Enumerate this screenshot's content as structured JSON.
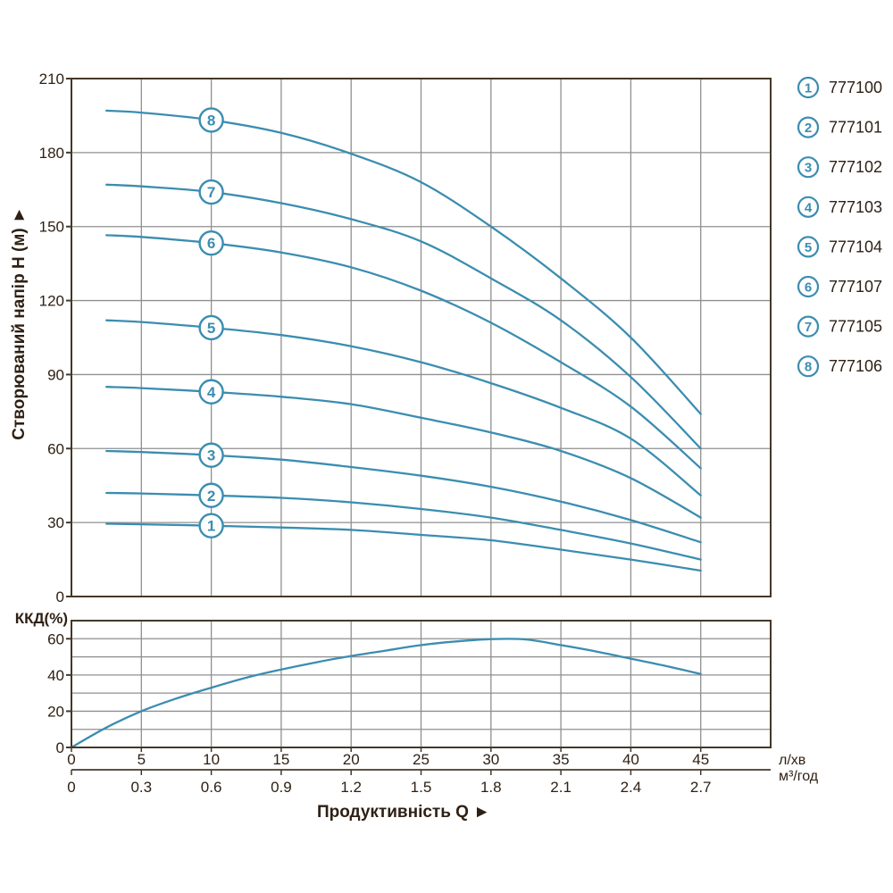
{
  "labels": {
    "y_axis": "Створюваний напір Н (м) ►",
    "x_axis": "Продуктивність  Q ►",
    "efficiency": "ККД(%)",
    "unit_primary": "л/хв",
    "unit_secondary": "м³/год"
  },
  "colors": {
    "curve": "#3b8db0",
    "grid": "#8f8f8f",
    "frame": "#453828",
    "text": "#2e2014"
  },
  "legend": [
    {
      "marker": "1",
      "code": "777100"
    },
    {
      "marker": "2",
      "code": "777101"
    },
    {
      "marker": "3",
      "code": "777102"
    },
    {
      "marker": "4",
      "code": "777103"
    },
    {
      "marker": "5",
      "code": "777104"
    },
    {
      "marker": "6",
      "code": "777107"
    },
    {
      "marker": "7",
      "code": "777105"
    },
    {
      "marker": "8",
      "code": "777106"
    }
  ],
  "chart_data": [
    {
      "type": "line",
      "name": "head-vs-flow",
      "title": "",
      "xlabel": "Продуктивність Q",
      "ylabel": "Створюваний напір Н (м)",
      "x_unit": "л/хв",
      "x_unit_secondary": "м³/год",
      "xlim": [
        0,
        50
      ],
      "ylim": [
        0,
        210
      ],
      "x_ticks": [
        0,
        5,
        10,
        15,
        20,
        25,
        30,
        35,
        40,
        45
      ],
      "x_ticks_secondary": [
        "0",
        "0.3",
        "0.6",
        "0.9",
        "1.2",
        "1.5",
        "1.8",
        "2.1",
        "2.4",
        "2.7"
      ],
      "y_ticks": [
        0,
        30,
        60,
        90,
        120,
        150,
        180,
        210
      ],
      "grid": true,
      "legend_position": "right",
      "marker_at_q": 10,
      "series": [
        {
          "marker": "1",
          "code": "777100",
          "points": [
            [
              2.5,
              29.5
            ],
            [
              5,
              29.3
            ],
            [
              10,
              28.7
            ],
            [
              15,
              28
            ],
            [
              20,
              27
            ],
            [
              25,
              25
            ],
            [
              30,
              22.8
            ],
            [
              35,
              19
            ],
            [
              40,
              15
            ],
            [
              45,
              10.5
            ]
          ]
        },
        {
          "marker": "2",
          "code": "777101",
          "points": [
            [
              2.5,
              42
            ],
            [
              5,
              41.8
            ],
            [
              10,
              41
            ],
            [
              15,
              40
            ],
            [
              20,
              38.2
            ],
            [
              25,
              35.5
            ],
            [
              30,
              32
            ],
            [
              35,
              27
            ],
            [
              40,
              21.5
            ],
            [
              45,
              15
            ]
          ]
        },
        {
          "marker": "3",
          "code": "777102",
          "points": [
            [
              2.5,
              59
            ],
            [
              5,
              58.6
            ],
            [
              10,
              57.3
            ],
            [
              15,
              55.5
            ],
            [
              20,
              52.5
            ],
            [
              25,
              49
            ],
            [
              30,
              44.5
            ],
            [
              35,
              38.5
            ],
            [
              40,
              31
            ],
            [
              45,
              22
            ]
          ]
        },
        {
          "marker": "4",
          "code": "777103",
          "points": [
            [
              2.5,
              85
            ],
            [
              5,
              84.5
            ],
            [
              10,
              83
            ],
            [
              15,
              81
            ],
            [
              20,
              78
            ],
            [
              25,
              72.5
            ],
            [
              30,
              66.5
            ],
            [
              35,
              59
            ],
            [
              40,
              48
            ],
            [
              45,
              32
            ]
          ]
        },
        {
          "marker": "5",
          "code": "777104",
          "points": [
            [
              2.5,
              112
            ],
            [
              5,
              111.3
            ],
            [
              10,
              109
            ],
            [
              15,
              106
            ],
            [
              20,
              101.5
            ],
            [
              25,
              95
            ],
            [
              30,
              86.5
            ],
            [
              35,
              76.5
            ],
            [
              40,
              64
            ],
            [
              45,
              41
            ]
          ]
        },
        {
          "marker": "6",
          "code": "777107",
          "points": [
            [
              2.5,
              146.5
            ],
            [
              5,
              145.8
            ],
            [
              10,
              143.3
            ],
            [
              15,
              139.5
            ],
            [
              20,
              133.5
            ],
            [
              25,
              124
            ],
            [
              30,
              111
            ],
            [
              35,
              95
            ],
            [
              40,
              77
            ],
            [
              45,
              52
            ]
          ]
        },
        {
          "marker": "7",
          "code": "777105",
          "points": [
            [
              2.5,
              167
            ],
            [
              5,
              166.3
            ],
            [
              10,
              164
            ],
            [
              15,
              159.5
            ],
            [
              20,
              153
            ],
            [
              25,
              144
            ],
            [
              30,
              129
            ],
            [
              35,
              112
            ],
            [
              40,
              89
            ],
            [
              45,
              60
            ]
          ]
        },
        {
          "marker": "8",
          "code": "777106",
          "points": [
            [
              2.5,
              197
            ],
            [
              5,
              196.2
            ],
            [
              10,
              193.2
            ],
            [
              15,
              188
            ],
            [
              20,
              179.5
            ],
            [
              25,
              168
            ],
            [
              30,
              150
            ],
            [
              35,
              129
            ],
            [
              40,
              105
            ],
            [
              45,
              74
            ]
          ]
        }
      ]
    },
    {
      "type": "line",
      "name": "efficiency",
      "title": "",
      "ylabel": "ККД(%)",
      "ylim": [
        0,
        70
      ],
      "y_ticks": [
        0,
        20,
        40,
        60
      ],
      "grid": true,
      "series": [
        {
          "name": "ККД",
          "points": [
            [
              0,
              0
            ],
            [
              2.5,
              11
            ],
            [
              5,
              20
            ],
            [
              7.5,
              27
            ],
            [
              10,
              33
            ],
            [
              12.5,
              38.5
            ],
            [
              15,
              43
            ],
            [
              17.5,
              47
            ],
            [
              20,
              50.5
            ],
            [
              22.5,
              53.5
            ],
            [
              25,
              56.5
            ],
            [
              27.5,
              58.5
            ],
            [
              30,
              59.8
            ],
            [
              32.5,
              59.6
            ],
            [
              35,
              56.5
            ],
            [
              37.5,
              53
            ],
            [
              40,
              49
            ],
            [
              42.5,
              45
            ],
            [
              45,
              40.5
            ]
          ]
        }
      ]
    }
  ]
}
